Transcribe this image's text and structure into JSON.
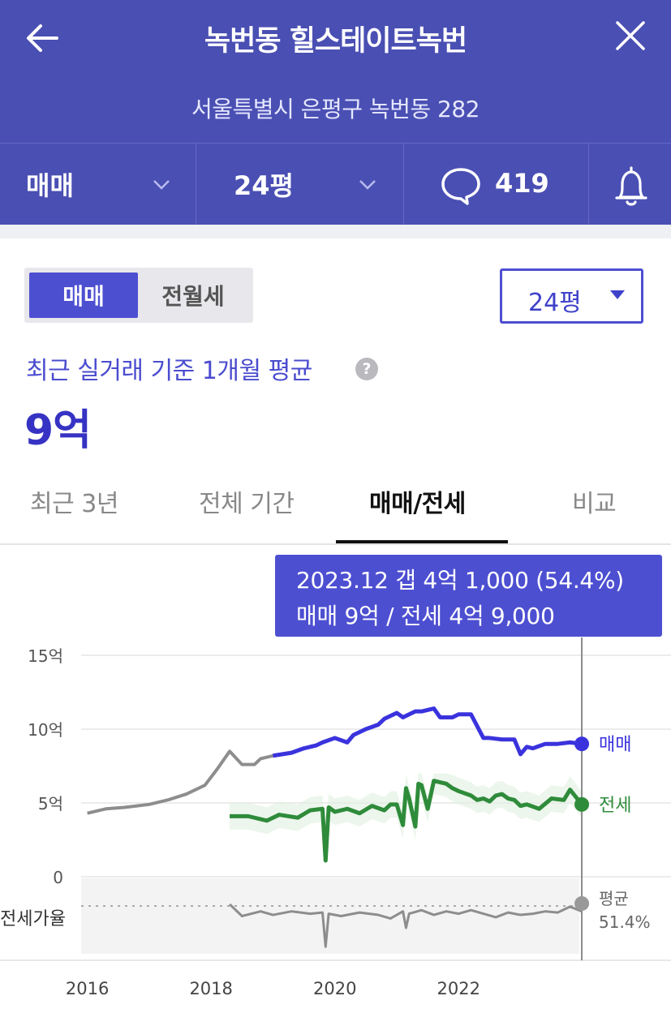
{
  "header": {
    "title": "녹번동 힐스테이트녹번",
    "address": "서울특별시 은평구 녹번동 282",
    "trade_type": "매매",
    "size": "24평",
    "comment_count": "419"
  },
  "controls": {
    "segment": [
      "매매",
      "전월세"
    ],
    "size_dropdown": "24평"
  },
  "summary": {
    "label": "최근 실거래 기준 1개월 평균",
    "value": "9억"
  },
  "tabs": [
    "최근 3년",
    "전체 기간",
    "매매/전세",
    "비교"
  ],
  "tooltip": {
    "line1": "2023.12  갭 4억 1,000 (54.4%)",
    "line2": "매매 9억 / 전세 4억 9,000"
  },
  "colors": {
    "header_bg": "#4a4fb3",
    "accent": "#4d4fd1",
    "sale_line": "#3a33dd",
    "jeonse_line": "#2e8b3a",
    "history_line": "#8d8d8d"
  },
  "chart_data": {
    "type": "line",
    "ytick_labels": [
      "15억",
      "10억",
      "5억",
      "0"
    ],
    "yticks": [
      15,
      10,
      5,
      0
    ],
    "xtick_labels": [
      "2016",
      "2018",
      "2020",
      "2022"
    ],
    "xticks": [
      2016,
      2018,
      2020,
      2022
    ],
    "xlim": [
      2015.9,
      2023.95
    ],
    "ylim": [
      0,
      15
    ],
    "ratio_ylim": [
      -0.6,
      2.6
    ],
    "ratio_band_label": "전세가율",
    "legend": [
      "매매",
      "전세"
    ],
    "ratio_avg_label": "평균",
    "ratio_avg_value": "51.4%",
    "series": [
      {
        "name": "매매",
        "color": "#3a33dd",
        "x": [
          2016.0,
          2016.3,
          2016.6,
          2017.0,
          2017.3,
          2017.6,
          2017.9,
          2018.1,
          2018.3,
          2018.5,
          2018.7,
          2018.8,
          2019.0,
          2019.3,
          2019.5,
          2019.7,
          2019.8,
          2020.0,
          2020.2,
          2020.3,
          2020.5,
          2020.7,
          2020.8,
          2021.0,
          2021.1,
          2021.3,
          2021.4,
          2021.6,
          2021.7,
          2021.9,
          2022.0,
          2022.2,
          2022.4,
          2022.5,
          2022.7,
          2022.9,
          2023.0,
          2023.1,
          2023.2,
          2023.4,
          2023.6,
          2023.8,
          2023.99
        ],
        "y": [
          4.3,
          4.6,
          4.7,
          4.9,
          5.2,
          5.6,
          6.2,
          7.3,
          8.5,
          7.6,
          7.6,
          8.0,
          8.2,
          8.4,
          8.7,
          8.9,
          9.1,
          9.4,
          9.1,
          9.6,
          10.0,
          10.3,
          10.7,
          11.1,
          10.8,
          11.2,
          11.2,
          11.4,
          10.8,
          10.8,
          11.0,
          11.0,
          9.4,
          9.4,
          9.3,
          9.3,
          8.3,
          8.8,
          8.7,
          9.0,
          9.0,
          9.1,
          9.0
        ]
      },
      {
        "name": "전세",
        "color": "#2e8b3a",
        "x": [
          2018.3,
          2018.6,
          2018.9,
          2019.1,
          2019.4,
          2019.6,
          2019.8,
          2019.85,
          2019.9,
          2020.0,
          2020.2,
          2020.4,
          2020.6,
          2020.8,
          2020.9,
          2021.0,
          2021.1,
          2021.15,
          2021.2,
          2021.3,
          2021.35,
          2021.4,
          2021.5,
          2021.6,
          2021.7,
          2021.8,
          2021.9,
          2022.0,
          2022.2,
          2022.3,
          2022.4,
          2022.5,
          2022.6,
          2022.7,
          2022.8,
          2022.9,
          2023.0,
          2023.1,
          2023.3,
          2023.5,
          2023.7,
          2023.8,
          2023.99
        ],
        "y": [
          4.1,
          4.1,
          3.8,
          4.2,
          4.0,
          4.5,
          4.6,
          1.1,
          4.7,
          4.4,
          4.6,
          4.3,
          4.8,
          4.5,
          4.9,
          4.9,
          3.5,
          6.0,
          5.3,
          3.4,
          6.3,
          6.2,
          4.6,
          6.5,
          6.4,
          6.3,
          6.0,
          5.8,
          5.5,
          5.2,
          5.3,
          5.1,
          5.5,
          5.6,
          5.3,
          5.2,
          4.8,
          4.9,
          4.6,
          5.3,
          5.2,
          5.9,
          4.9
        ]
      },
      {
        "name": "전세가율",
        "color": "#8d8d8d",
        "x": [
          2018.3,
          2018.5,
          2018.8,
          2019.0,
          2019.3,
          2019.6,
          2019.8,
          2019.85,
          2019.9,
          2020.1,
          2020.4,
          2020.7,
          2020.9,
          2021.1,
          2021.15,
          2021.2,
          2021.4,
          2021.6,
          2021.8,
          2022.0,
          2022.2,
          2022.4,
          2022.6,
          2022.8,
          2023.0,
          2023.2,
          2023.4,
          2023.6,
          2023.8,
          2023.99
        ],
        "y": [
          1.5,
          1.0,
          1.2,
          1.05,
          1.2,
          1.1,
          1.15,
          -0.3,
          1.1,
          1.0,
          1.15,
          1.05,
          0.9,
          1.2,
          0.5,
          1.1,
          1.25,
          1.05,
          1.2,
          1.1,
          1.25,
          1.1,
          0.95,
          1.15,
          1.05,
          1.1,
          1.2,
          1.15,
          1.4,
          1.2
        ]
      }
    ],
    "selected": {
      "x": 2023.99,
      "sale": 9.0,
      "jeonse": 4.9
    }
  }
}
